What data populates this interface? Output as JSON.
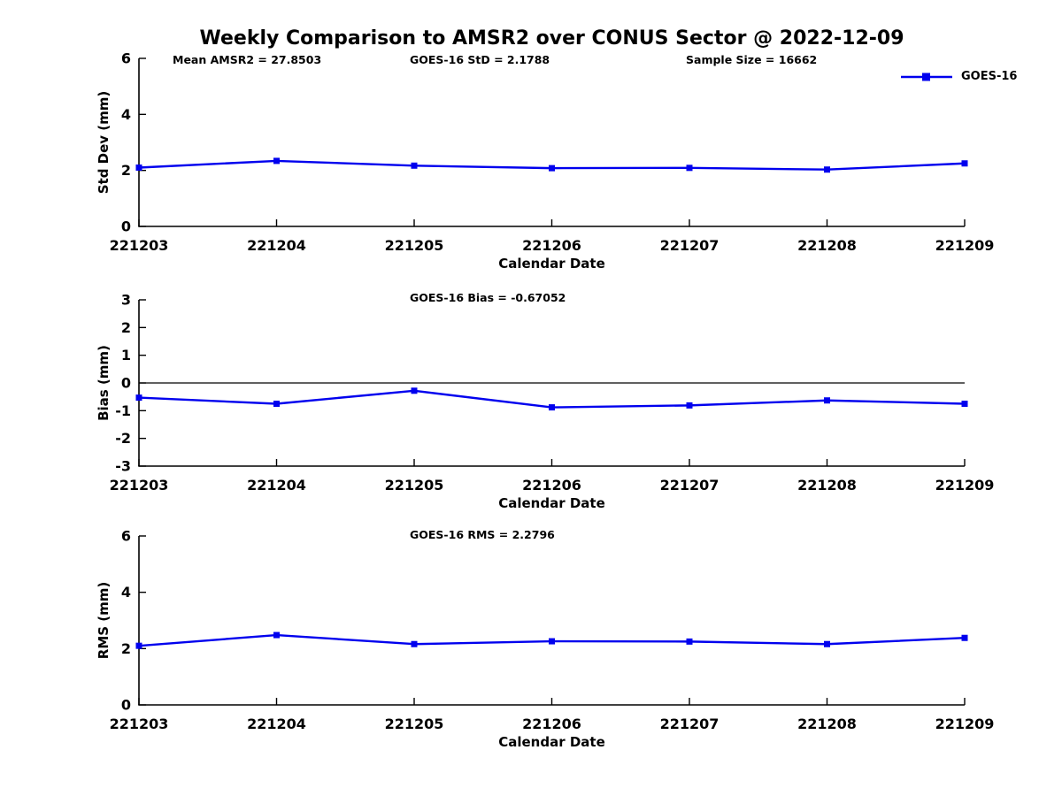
{
  "figure": {
    "title": "Weekly Comparison to AMSR2 over CONUS Sector @ 2022-12-09",
    "legend": {
      "label": "GOES-16",
      "color": "#0000EE",
      "marker": "square",
      "position": "top-right"
    }
  },
  "chart_data": [
    {
      "type": "line",
      "title": "",
      "annotations": [
        "Mean AMSR2 = 27.8503",
        "GOES-16 StD = 2.1788",
        "Sample Size = 16662"
      ],
      "xlabel": "Calendar Date",
      "ylabel": "Std Dev (mm)",
      "ylim": [
        0,
        6
      ],
      "yticks": [
        6,
        4,
        2,
        0
      ],
      "x_categories": [
        "221203",
        "221204",
        "221205",
        "221206",
        "221207",
        "221208",
        "221209"
      ],
      "grid": false,
      "zero_line": false,
      "series": [
        {
          "name": "GOES-16",
          "color": "#0000EE",
          "marker": "square",
          "values": [
            2.1,
            2.34,
            2.17,
            2.08,
            2.09,
            2.03,
            2.25
          ]
        }
      ]
    },
    {
      "type": "line",
      "title": "",
      "annotations": [
        "GOES-16 Bias  = -0.67052"
      ],
      "xlabel": "Calendar Date",
      "ylabel": "Bias (mm)",
      "ylim": [
        -3,
        3
      ],
      "yticks": [
        3,
        2,
        1,
        0,
        -1,
        -2,
        -3
      ],
      "x_categories": [
        "221203",
        "221204",
        "221205",
        "221206",
        "221207",
        "221208",
        "221209"
      ],
      "grid": false,
      "zero_line": true,
      "series": [
        {
          "name": "GOES-16",
          "color": "#0000EE",
          "marker": "square",
          "values": [
            -0.53,
            -0.75,
            -0.28,
            -0.88,
            -0.81,
            -0.63,
            -0.75
          ]
        }
      ]
    },
    {
      "type": "line",
      "title": "",
      "annotations": [
        "GOES-16 RMS = 2.2796"
      ],
      "xlabel": "Calendar Date",
      "ylabel": "RMS (mm)",
      "ylim": [
        0,
        6
      ],
      "yticks": [
        6,
        4,
        2,
        0
      ],
      "x_categories": [
        "221203",
        "221204",
        "221205",
        "221206",
        "221207",
        "221208",
        "221209"
      ],
      "grid": false,
      "zero_line": false,
      "series": [
        {
          "name": "GOES-16",
          "color": "#0000EE",
          "marker": "square",
          "values": [
            2.1,
            2.48,
            2.16,
            2.26,
            2.25,
            2.16,
            2.38
          ]
        }
      ]
    }
  ]
}
